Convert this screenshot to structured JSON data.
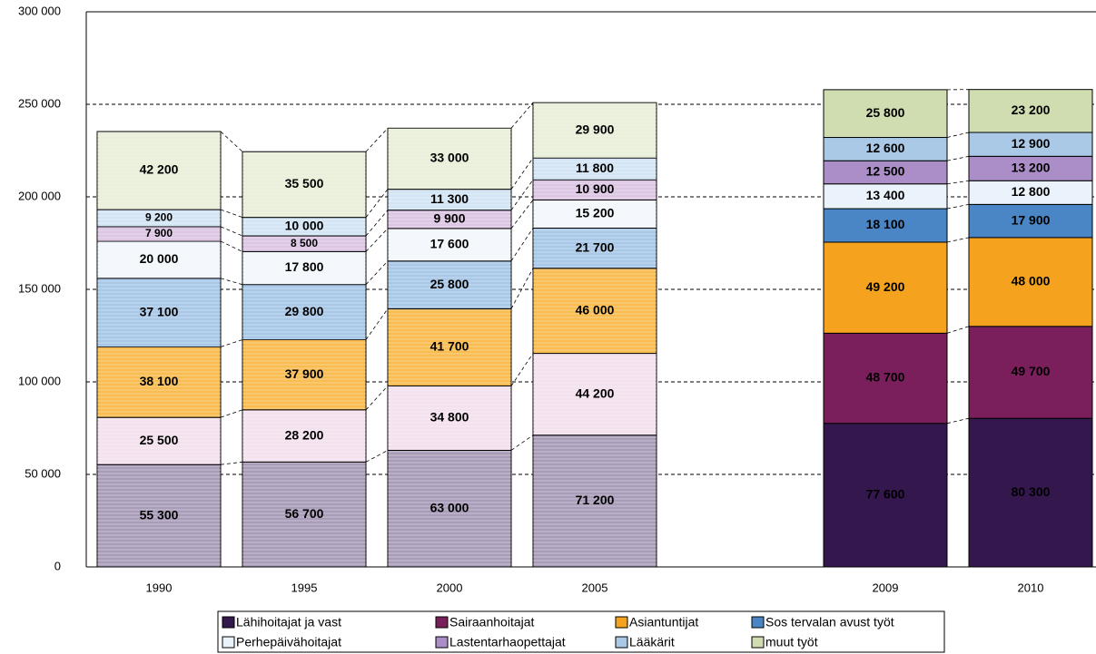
{
  "chart_data": {
    "type": "stacked_bar",
    "categories": [
      "1990",
      "1995",
      "2000",
      "2005",
      null,
      "2009",
      "2010"
    ],
    "ylim": [
      0,
      300000
    ],
    "yticks": [
      0,
      {
        "value": 50000,
        "label": "50 000"
      },
      {
        "value": 100000,
        "label": "100 000"
      },
      {
        "value": 150000,
        "label": "150 000"
      },
      {
        "value": 200000,
        "label": "200 000"
      },
      {
        "value": 250000,
        "label": "250 000"
      },
      {
        "value": 300000,
        "label": "300 000"
      }
    ],
    "grid": true,
    "legend": "bottom",
    "series": [
      {
        "name": "Lähihoitajat ja vast",
        "color": "#33174d",
        "colors": [
          "#a99cb9",
          "#a99cb9",
          "#a99cb9",
          "#a99cb9",
          null,
          "#33174d",
          "#33174d"
        ],
        "values": [
          55300,
          56700,
          63000,
          71200,
          null,
          77600,
          80300
        ],
        "value_labels": [
          "55 300",
          "56 700",
          "63 000",
          "71 200",
          null,
          "77 600",
          "80 300"
        ]
      },
      {
        "name": "Sairaanhoitajat",
        "color": "#7a1f5c",
        "colors": [
          "#f3e1ee",
          "#f3e1ee",
          "#f3e1ee",
          "#f3e1ee",
          null,
          "#7a1f5c",
          "#7a1f5c"
        ],
        "values": [
          25500,
          28200,
          34800,
          44200,
          null,
          48700,
          49700
        ],
        "value_labels": [
          "25 500",
          "28 200",
          "34 800",
          "44 200",
          null,
          "48 700",
          "49 700"
        ]
      },
      {
        "name": "Asiantuntijat",
        "color": "#f5a31f",
        "colors": [
          "#f8bc50",
          "#f8bc50",
          "#f8bc50",
          "#f8bc50",
          null,
          "#f5a31f",
          "#f5a31f"
        ],
        "values": [
          38100,
          37900,
          41700,
          46000,
          null,
          49200,
          48000
        ],
        "value_labels": [
          "38 100",
          "37 900",
          "41 700",
          "46 000",
          null,
          "49 200",
          "48 000"
        ]
      },
      {
        "name": "Sos tervalan avust työt",
        "color": "#4a86c5",
        "colors": [
          "#a9c8e8",
          "#a9c8e8",
          "#a9c8e8",
          "#a9c8e8",
          null,
          "#4a86c5",
          "#4a86c5"
        ],
        "values": [
          37100,
          29800,
          25800,
          21700,
          null,
          18100,
          17900
        ],
        "value_labels": [
          "37 100",
          "29 800",
          "25 800",
          "21 700",
          null,
          "18 100",
          "17 900"
        ]
      },
      {
        "name": "Perhepäivähoitajat",
        "color": "#eaf3fb",
        "colors": [
          "#f2f7fc",
          "#f2f7fc",
          "#f2f7fc",
          "#f2f7fc",
          null,
          "#eaf3fb",
          "#eaf3fb"
        ],
        "values": [
          20000,
          17800,
          17600,
          15200,
          null,
          13400,
          12800
        ],
        "value_labels": [
          "20 000",
          "17 800",
          "17 600",
          "15 200",
          null,
          "13 400",
          "12 800"
        ]
      },
      {
        "name": "Lastentarhaopettajat",
        "color": "#ab8dc8",
        "colors": [
          "#dcc6e4",
          "#dcc6e4",
          "#dcc6e4",
          "#dcc6e4",
          null,
          "#ab8dc8",
          "#ab8dc8"
        ],
        "values": [
          7900,
          8500,
          9900,
          10900,
          null,
          12500,
          13200
        ],
        "value_labels": [
          "7 900",
          "8 500",
          "9 900",
          "10 900",
          null,
          "12 500",
          "13 200"
        ]
      },
      {
        "name": "Lääkärit",
        "color": "#a9c9e6",
        "colors": [
          "#d3e5f4",
          "#d3e5f4",
          "#d3e5f4",
          "#d3e5f4",
          null,
          "#a9c9e6",
          "#a9c9e6"
        ],
        "values": [
          9200,
          10000,
          11300,
          11800,
          null,
          12600,
          12900
        ],
        "value_labels": [
          "9 200",
          "10 000",
          "11 300",
          "11 800",
          null,
          "12 600",
          "12 900"
        ]
      },
      {
        "name": "muut työt",
        "color": "#cfddb1",
        "colors": [
          "#e9f0da",
          "#e9f0da",
          "#e9f0da",
          "#e9f0da",
          null,
          "#cfddb1",
          "#cfddb1"
        ],
        "values": [
          42200,
          35500,
          33000,
          29900,
          null,
          25800,
          23200
        ],
        "value_labels": [
          "42 200",
          "35 500",
          "33 000",
          "29 900",
          null,
          "25 800",
          "23 200"
        ]
      }
    ]
  }
}
